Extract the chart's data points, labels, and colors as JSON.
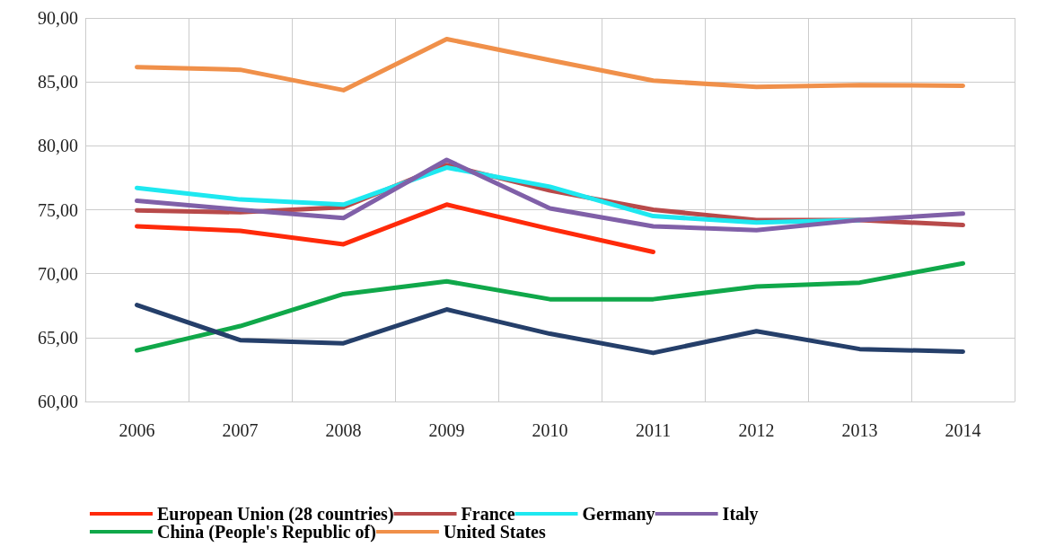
{
  "chart_data": {
    "type": "line",
    "categories": [
      "2006",
      "2007",
      "2008",
      "2009",
      "2010",
      "2011",
      "2012",
      "2013",
      "2014"
    ],
    "ylim": [
      60,
      90
    ],
    "yticks": [
      {
        "value": 60,
        "label": "60,00"
      },
      {
        "value": 65,
        "label": "65,00"
      },
      {
        "value": 70,
        "label": "70,00"
      },
      {
        "value": 75,
        "label": "75,00"
      },
      {
        "value": 80,
        "label": "80,00"
      },
      {
        "value": 85,
        "label": "85,00"
      },
      {
        "value": 90,
        "label": "90,00"
      }
    ],
    "grid": true,
    "legend": "bottom",
    "marker": "none",
    "line_style": "solid",
    "series": [
      {
        "name": "European Union (28 countries)",
        "color": "#ff2a0a",
        "values": [
          73.7,
          73.35,
          72.3,
          75.4,
          73.5,
          71.7,
          null,
          null,
          null
        ]
      },
      {
        "name": "France",
        "color": "#b84a4a",
        "values": [
          74.95,
          74.8,
          75.2,
          78.5,
          76.5,
          75.0,
          74.2,
          74.2,
          73.8
        ]
      },
      {
        "name": "Germany",
        "color": "#1ee8f0",
        "values": [
          76.7,
          75.8,
          75.4,
          78.3,
          76.8,
          74.5,
          74.0,
          74.2,
          null
        ]
      },
      {
        "name": "Italy",
        "color": "#8060a8",
        "values": [
          75.7,
          75.0,
          74.35,
          78.9,
          75.1,
          73.7,
          73.4,
          74.2,
          74.7
        ]
      },
      {
        "name": "China (People's Republic of)",
        "color": "#10a84a",
        "values": [
          64.0,
          65.9,
          68.4,
          69.4,
          68.0,
          68.0,
          69.0,
          69.3,
          70.8
        ]
      },
      {
        "name": "United States",
        "color": "#f0904a",
        "values": [
          86.15,
          85.95,
          84.35,
          88.35,
          86.7,
          85.1,
          84.6,
          84.75,
          84.7
        ]
      },
      {
        "color": "#253f6a",
        "values": [
          67.55,
          64.8,
          64.55,
          67.2,
          65.3,
          63.8,
          65.5,
          64.1,
          63.9
        ]
      }
    ]
  }
}
